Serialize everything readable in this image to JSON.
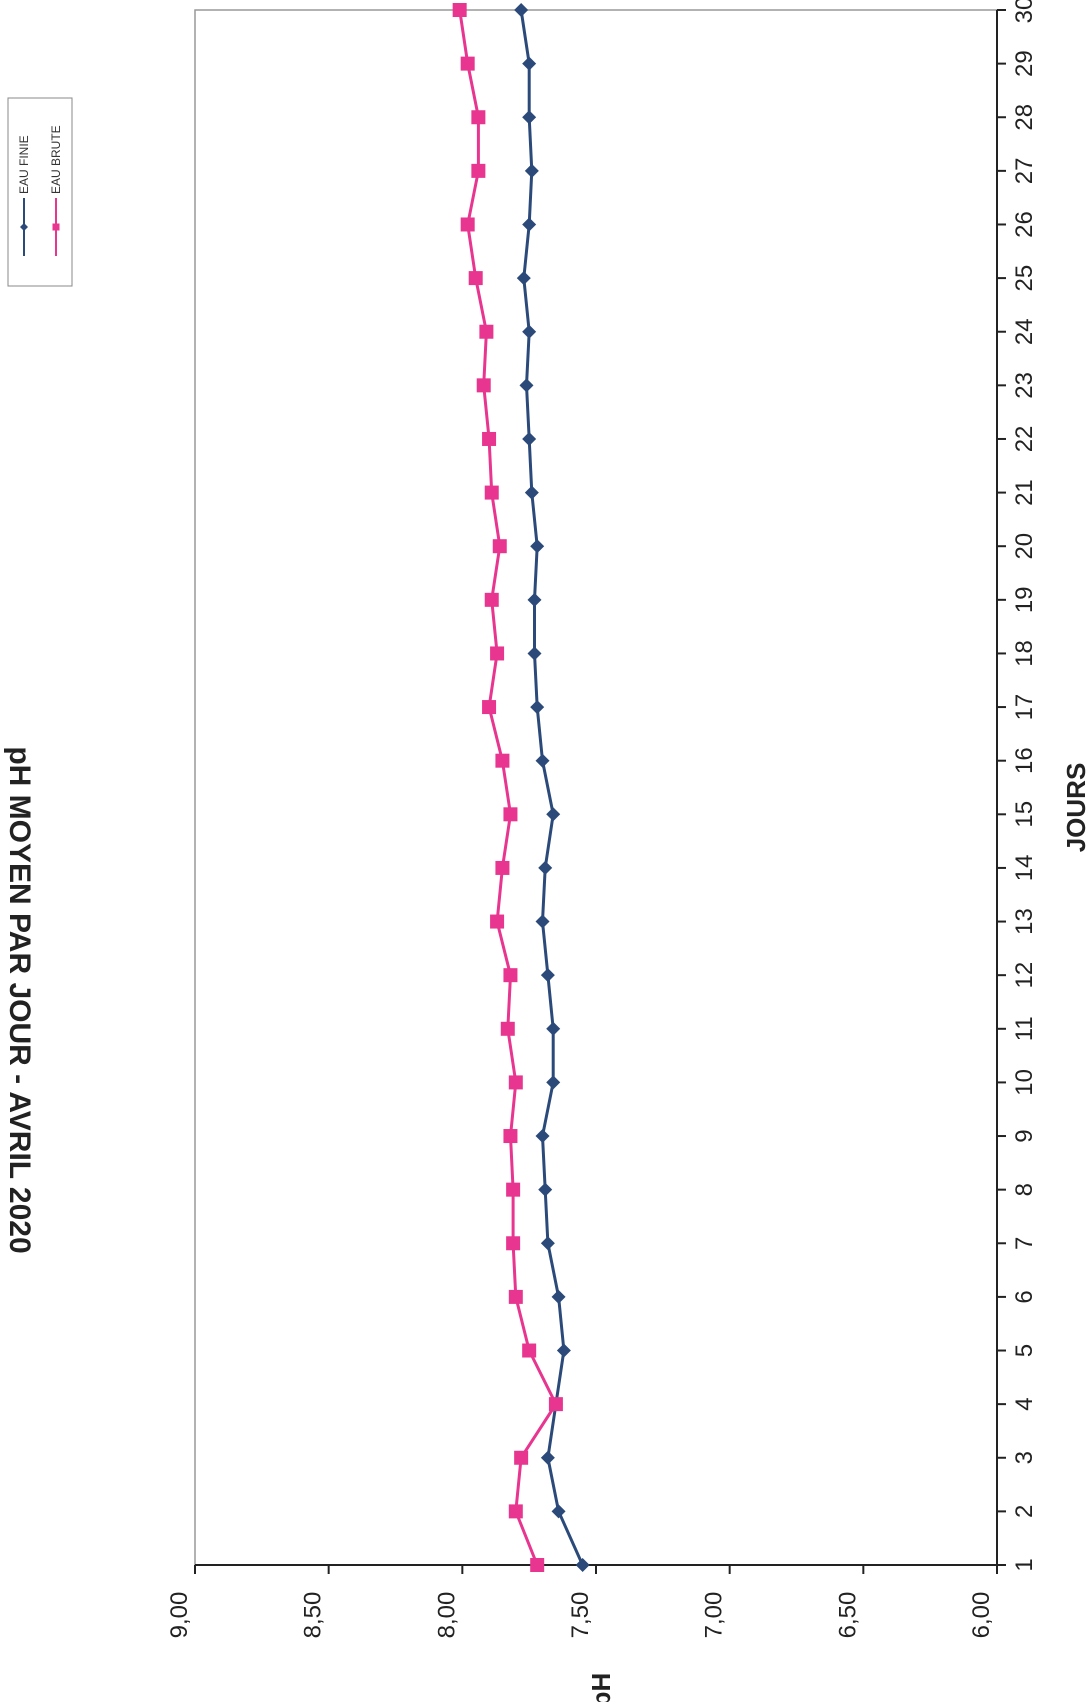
{
  "chart_data": {
    "type": "line",
    "title": "pH MOYEN PAR JOUR - AVRIL 2020",
    "xlabel": "JOURS",
    "ylabel": "pH",
    "x": [
      1,
      2,
      3,
      4,
      5,
      6,
      7,
      8,
      9,
      10,
      11,
      12,
      13,
      14,
      15,
      16,
      17,
      18,
      19,
      20,
      21,
      22,
      23,
      24,
      25,
      26,
      27,
      28,
      29,
      30
    ],
    "x_tick_labels": [
      "1",
      "2",
      "3",
      "4",
      "5",
      "6",
      "7",
      "8",
      "9",
      "10",
      "11",
      "12",
      "13",
      "14",
      "15",
      "16",
      "17",
      "18",
      "19",
      "20",
      "21",
      "22",
      "23",
      "24",
      "25",
      "26",
      "27",
      "28",
      "29",
      "30"
    ],
    "ylim": [
      6.0,
      9.0
    ],
    "y_tick_labels": [
      "6,00",
      "6,50",
      "7,00",
      "7,50",
      "8,00",
      "8,50",
      "9,00"
    ],
    "y_tick_values": [
      6.0,
      6.5,
      7.0,
      7.5,
      8.0,
      8.5,
      9.0
    ],
    "orientation": "rotated-90-clockwise",
    "grid": false,
    "legend_position": "top-right",
    "series": [
      {
        "name": "EAU FINIE",
        "color": "#2b4a7a",
        "marker": "diamond",
        "values": [
          7.55,
          7.64,
          7.68,
          7.65,
          7.62,
          7.64,
          7.68,
          7.69,
          7.7,
          7.66,
          7.66,
          7.68,
          7.7,
          7.69,
          7.66,
          7.7,
          7.72,
          7.73,
          7.73,
          7.72,
          7.74,
          7.75,
          7.76,
          7.75,
          7.77,
          7.75,
          7.74,
          7.75,
          7.75,
          7.78
        ]
      },
      {
        "name": "EAU BRUTE",
        "color": "#e8358f",
        "marker": "square",
        "values": [
          7.72,
          7.8,
          7.78,
          7.65,
          7.75,
          7.8,
          7.81,
          7.81,
          7.82,
          7.8,
          7.83,
          7.82,
          7.87,
          7.85,
          7.82,
          7.85,
          7.9,
          7.87,
          7.89,
          7.86,
          7.89,
          7.9,
          7.92,
          7.91,
          7.95,
          7.98,
          7.94,
          7.94,
          7.98,
          8.01
        ]
      }
    ]
  }
}
